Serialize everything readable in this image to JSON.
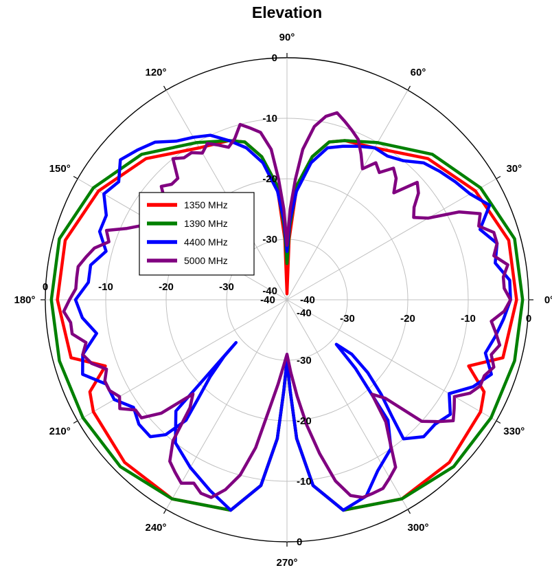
{
  "chart_data": {
    "type": "polar-line",
    "title": "Elevation",
    "angle_unit": "deg",
    "angle_ticks": [
      "0°",
      "30°",
      "60°",
      "90°",
      "120°",
      "150°",
      "180°",
      "210°",
      "240°",
      "270°",
      "300°",
      "330°"
    ],
    "angle_tick_values": [
      0,
      30,
      60,
      90,
      120,
      150,
      180,
      210,
      240,
      270,
      300,
      330
    ],
    "radial_range": [
      -40,
      0
    ],
    "radial_ticks": [
      -40,
      -30,
      -20,
      -10,
      0
    ],
    "radial_tick_labels": [
      "-40",
      "-30",
      "-20",
      "-10",
      "0"
    ],
    "grid": true,
    "legend_position": "upper-left-inside",
    "series": [
      {
        "name": "1350 MHz",
        "color": "#ff0000",
        "theta": [
          0,
          15,
          30,
          45,
          60,
          70,
          75,
          80,
          85,
          88,
          90,
          92,
          95,
          100,
          105,
          110,
          120,
          135,
          150,
          165,
          180,
          195,
          200,
          205,
          210,
          225,
          240,
          255,
          262,
          266,
          268,
          270,
          272,
          274,
          278,
          285,
          300,
          315,
          330,
          335,
          340,
          345,
          360
        ],
        "r": [
          -2,
          -2,
          -4,
          -7,
          -11,
          -12,
          -13,
          -16,
          -21,
          -30,
          -39,
          -30,
          -21,
          -16,
          -13,
          -12,
          -11,
          -7,
          -4,
          -2,
          -2,
          -3,
          -8,
          -4,
          -3,
          -2,
          -2,
          -4,
          -9,
          -17,
          -25,
          -30,
          -25,
          -17,
          -9,
          -4,
          -2,
          -2,
          -3,
          -4,
          -8,
          -3,
          -2
        ]
      },
      {
        "name": "1390 MHz",
        "color": "#008000",
        "theta": [
          0,
          15,
          30,
          45,
          60,
          70,
          75,
          80,
          85,
          88,
          90,
          92,
          95,
          100,
          105,
          110,
          120,
          135,
          150,
          165,
          180,
          195,
          210,
          225,
          240,
          255,
          262,
          266,
          268,
          270,
          272,
          274,
          278,
          285,
          300,
          315,
          330,
          345,
          360
        ],
        "r": [
          -1,
          -1,
          -3,
          -6,
          -10,
          -12,
          -13,
          -16,
          -21,
          -28,
          -34,
          -28,
          -21,
          -16,
          -13,
          -12,
          -10,
          -6,
          -3,
          -1,
          -1,
          -1,
          -1,
          -1,
          -2,
          -4,
          -9,
          -17,
          -25,
          -30,
          -25,
          -17,
          -9,
          -4,
          -2,
          -1,
          -1,
          -1,
          -1
        ]
      },
      {
        "name": "4400 MHz",
        "color": "#0000ff",
        "theta": [
          0,
          5,
          10,
          15,
          20,
          25,
          30,
          35,
          40,
          45,
          50,
          55,
          60,
          65,
          70,
          75,
          80,
          85,
          88,
          90,
          92,
          95,
          100,
          105,
          110,
          115,
          120,
          125,
          130,
          135,
          140,
          145,
          150,
          155,
          160,
          165,
          170,
          175,
          180,
          185,
          190,
          195,
          200,
          205,
          210,
          215,
          220,
          225,
          228,
          230,
          228,
          225,
          222,
          220,
          225,
          232,
          240,
          248,
          255,
          262,
          266,
          268,
          270,
          272,
          274,
          278,
          285,
          292,
          298,
          305,
          310,
          315,
          318,
          320,
          318,
          315,
          312,
          310,
          315,
          320,
          325,
          330,
          335,
          340,
          345,
          350,
          355,
          360
        ],
        "r": [
          -3,
          -3,
          -5,
          -4,
          -6,
          -3,
          -5,
          -6,
          -7,
          -8,
          -10,
          -11,
          -11,
          -12,
          -13,
          -14,
          -17,
          -22,
          -27,
          -32,
          -27,
          -22,
          -17,
          -14,
          -12,
          -10,
          -9,
          -8,
          -6,
          -5,
          -4,
          -6,
          -5,
          -7,
          -7,
          -9,
          -7,
          -7,
          -5,
          -6,
          -8,
          -5,
          -4,
          -7,
          -7,
          -9,
          -8,
          -8,
          -10,
          -14,
          -18,
          -22,
          -26,
          -29,
          -14,
          -10,
          -8,
          -6,
          -4,
          -9,
          -17,
          -25,
          -30,
          -25,
          -17,
          -9,
          -4,
          -5,
          -8,
          -10,
          -14,
          -24,
          -29,
          -26,
          -22,
          -18,
          -14,
          -10,
          -8,
          -8,
          -7,
          -9,
          -6,
          -4,
          -6,
          -5,
          -4,
          -3
        ]
      },
      {
        "name": "5000 MHz",
        "color": "#800080",
        "theta": [
          0,
          3,
          6,
          9,
          12,
          15,
          18,
          21,
          24,
          27,
          30,
          33,
          36,
          39,
          42,
          45,
          48,
          51,
          54,
          57,
          60,
          63,
          66,
          69,
          72,
          75,
          78,
          81,
          84,
          86,
          88,
          90,
          92,
          94,
          96,
          99,
          102,
          105,
          108,
          111,
          114,
          117,
          120,
          123,
          126,
          129,
          132,
          135,
          138,
          141,
          144,
          147,
          150,
          153,
          156,
          159,
          162,
          165,
          168,
          171,
          174,
          177,
          180,
          183,
          186,
          189,
          192,
          195,
          198,
          201,
          204,
          207,
          210,
          213,
          216,
          219,
          222,
          225,
          228,
          231,
          234,
          237,
          240,
          243,
          246,
          249,
          252,
          255,
          258,
          261,
          264,
          267,
          270,
          273,
          276,
          279,
          282,
          285,
          288,
          291,
          294,
          297,
          300,
          303,
          306,
          309,
          312,
          315,
          318,
          321,
          324,
          327,
          330,
          333,
          336,
          339,
          342,
          345,
          348,
          351,
          354,
          357,
          360
        ],
        "r": [
          -3,
          -4,
          -4,
          -3,
          -5,
          -4,
          -4,
          -6,
          -5,
          -8,
          -13,
          -15,
          -14,
          -12,
          -11,
          -15,
          -13,
          -12,
          -14,
          -13,
          -15,
          -13,
          -11,
          -10,
          -9,
          -8,
          -9,
          -11,
          -15,
          -20,
          -25,
          -31,
          -25,
          -20,
          -15,
          -12,
          -11,
          -10,
          -12,
          -13,
          -12,
          -11,
          -12,
          -11,
          -11,
          -10,
          -13,
          -13,
          -12,
          -14,
          -15,
          -16,
          -14,
          -13,
          -11,
          -8,
          -9,
          -7,
          -6,
          -5,
          -5,
          -5,
          -4,
          -3,
          -4,
          -4,
          -6,
          -5,
          -6,
          -8,
          -7,
          -7,
          -8,
          -7,
          -9,
          -9,
          -12,
          -18,
          -16,
          -10,
          -7,
          -6,
          -5,
          -6,
          -5,
          -5,
          -7,
          -10,
          -15,
          -22,
          -26,
          -29,
          -31,
          -28,
          -24,
          -19,
          -14,
          -9,
          -6,
          -5,
          -5,
          -5,
          -6,
          -7,
          -11,
          -14,
          -19,
          -17,
          -10,
          -8,
          -6,
          -7,
          -8,
          -6,
          -5,
          -5,
          -4,
          -5,
          -4,
          -5,
          -6,
          -4,
          -3
        ]
      }
    ]
  }
}
